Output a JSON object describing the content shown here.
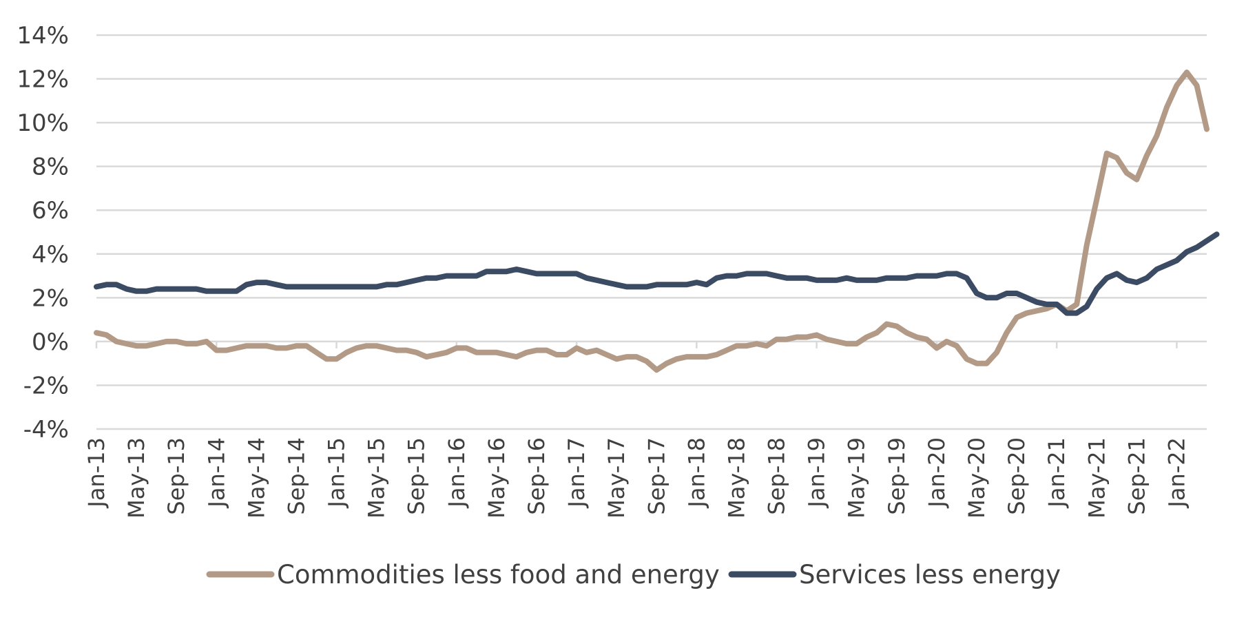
{
  "chart_data": {
    "type": "line",
    "title": "",
    "xlabel": "",
    "ylabel": "",
    "ylim": [
      -4,
      14
    ],
    "y_ticks": [
      14,
      12,
      10,
      8,
      6,
      4,
      2,
      0,
      -2,
      -4
    ],
    "y_tick_labels": [
      "14%",
      "12%",
      "10%",
      "8%",
      "6%",
      "4%",
      "2%",
      "0%",
      "-2%",
      "-4%"
    ],
    "x_start": "Jan-13",
    "x_tick_every_months": 4,
    "x_tick_labels": [
      "Jan-13",
      "May-13",
      "Sep-13",
      "Jan-14",
      "May-14",
      "Sep-14",
      "Jan-15",
      "May-15",
      "Sep-15",
      "Jan-16",
      "May-16",
      "Sep-16",
      "Jan-17",
      "May-17",
      "Sep-17",
      "Jan-18",
      "May-18",
      "Sep-18",
      "Jan-19",
      "May-19",
      "Sep-19",
      "Jan-20",
      "May-20",
      "Sep-20",
      "Jan-21",
      "May-21",
      "Sep-21",
      "Jan-22"
    ],
    "grid": true,
    "legend_position": "bottom",
    "series": [
      {
        "name": "Commodities less food and energy",
        "color": "#b39a86",
        "values": [
          0.4,
          0.3,
          0.0,
          -0.1,
          -0.2,
          -0.2,
          -0.1,
          0.0,
          0.0,
          -0.1,
          -0.1,
          0.0,
          -0.4,
          -0.4,
          -0.3,
          -0.2,
          -0.2,
          -0.2,
          -0.3,
          -0.3,
          -0.2,
          -0.2,
          -0.5,
          -0.8,
          -0.8,
          -0.5,
          -0.3,
          -0.2,
          -0.2,
          -0.3,
          -0.4,
          -0.4,
          -0.5,
          -0.7,
          -0.6,
          -0.5,
          -0.3,
          -0.3,
          -0.5,
          -0.5,
          -0.5,
          -0.6,
          -0.7,
          -0.5,
          -0.4,
          -0.4,
          -0.6,
          -0.6,
          -0.3,
          -0.5,
          -0.4,
          -0.6,
          -0.8,
          -0.7,
          -0.7,
          -0.9,
          -1.3,
          -1.0,
          -0.8,
          -0.7,
          -0.7,
          -0.7,
          -0.6,
          -0.4,
          -0.2,
          -0.2,
          -0.1,
          -0.2,
          0.1,
          0.1,
          0.2,
          0.2,
          0.3,
          0.1,
          0.0,
          -0.1,
          -0.1,
          0.2,
          0.4,
          0.8,
          0.7,
          0.4,
          0.2,
          0.1,
          -0.3,
          0.0,
          -0.2,
          -0.8,
          -1.0,
          -1.0,
          -0.5,
          0.4,
          1.1,
          1.3,
          1.4,
          1.5,
          1.7,
          1.4,
          1.7,
          4.4,
          6.5,
          8.6,
          8.4,
          7.7,
          7.4,
          8.5,
          9.4,
          10.7,
          11.7,
          12.3,
          11.7,
          9.7
        ]
      },
      {
        "name": "Services less energy",
        "color": "#3b4b63",
        "values": [
          2.5,
          2.6,
          2.6,
          2.4,
          2.3,
          2.3,
          2.4,
          2.4,
          2.4,
          2.4,
          2.4,
          2.3,
          2.3,
          2.3,
          2.3,
          2.6,
          2.7,
          2.7,
          2.6,
          2.5,
          2.5,
          2.5,
          2.5,
          2.5,
          2.5,
          2.5,
          2.5,
          2.5,
          2.5,
          2.6,
          2.6,
          2.7,
          2.8,
          2.9,
          2.9,
          3.0,
          3.0,
          3.0,
          3.0,
          3.2,
          3.2,
          3.2,
          3.3,
          3.2,
          3.1,
          3.1,
          3.1,
          3.1,
          3.1,
          2.9,
          2.8,
          2.7,
          2.6,
          2.5,
          2.5,
          2.5,
          2.6,
          2.6,
          2.6,
          2.6,
          2.7,
          2.6,
          2.9,
          3.0,
          3.0,
          3.1,
          3.1,
          3.1,
          3.0,
          2.9,
          2.9,
          2.9,
          2.8,
          2.8,
          2.8,
          2.9,
          2.8,
          2.8,
          2.8,
          2.9,
          2.9,
          2.9,
          3.0,
          3.0,
          3.0,
          3.1,
          3.1,
          2.9,
          2.2,
          2.0,
          2.0,
          2.2,
          2.2,
          2.0,
          1.8,
          1.7,
          1.7,
          1.3,
          1.3,
          1.6,
          2.4,
          2.9,
          3.1,
          2.8,
          2.7,
          2.9,
          3.3,
          3.5,
          3.7,
          4.1,
          4.3,
          4.6,
          4.9
        ]
      }
    ]
  }
}
